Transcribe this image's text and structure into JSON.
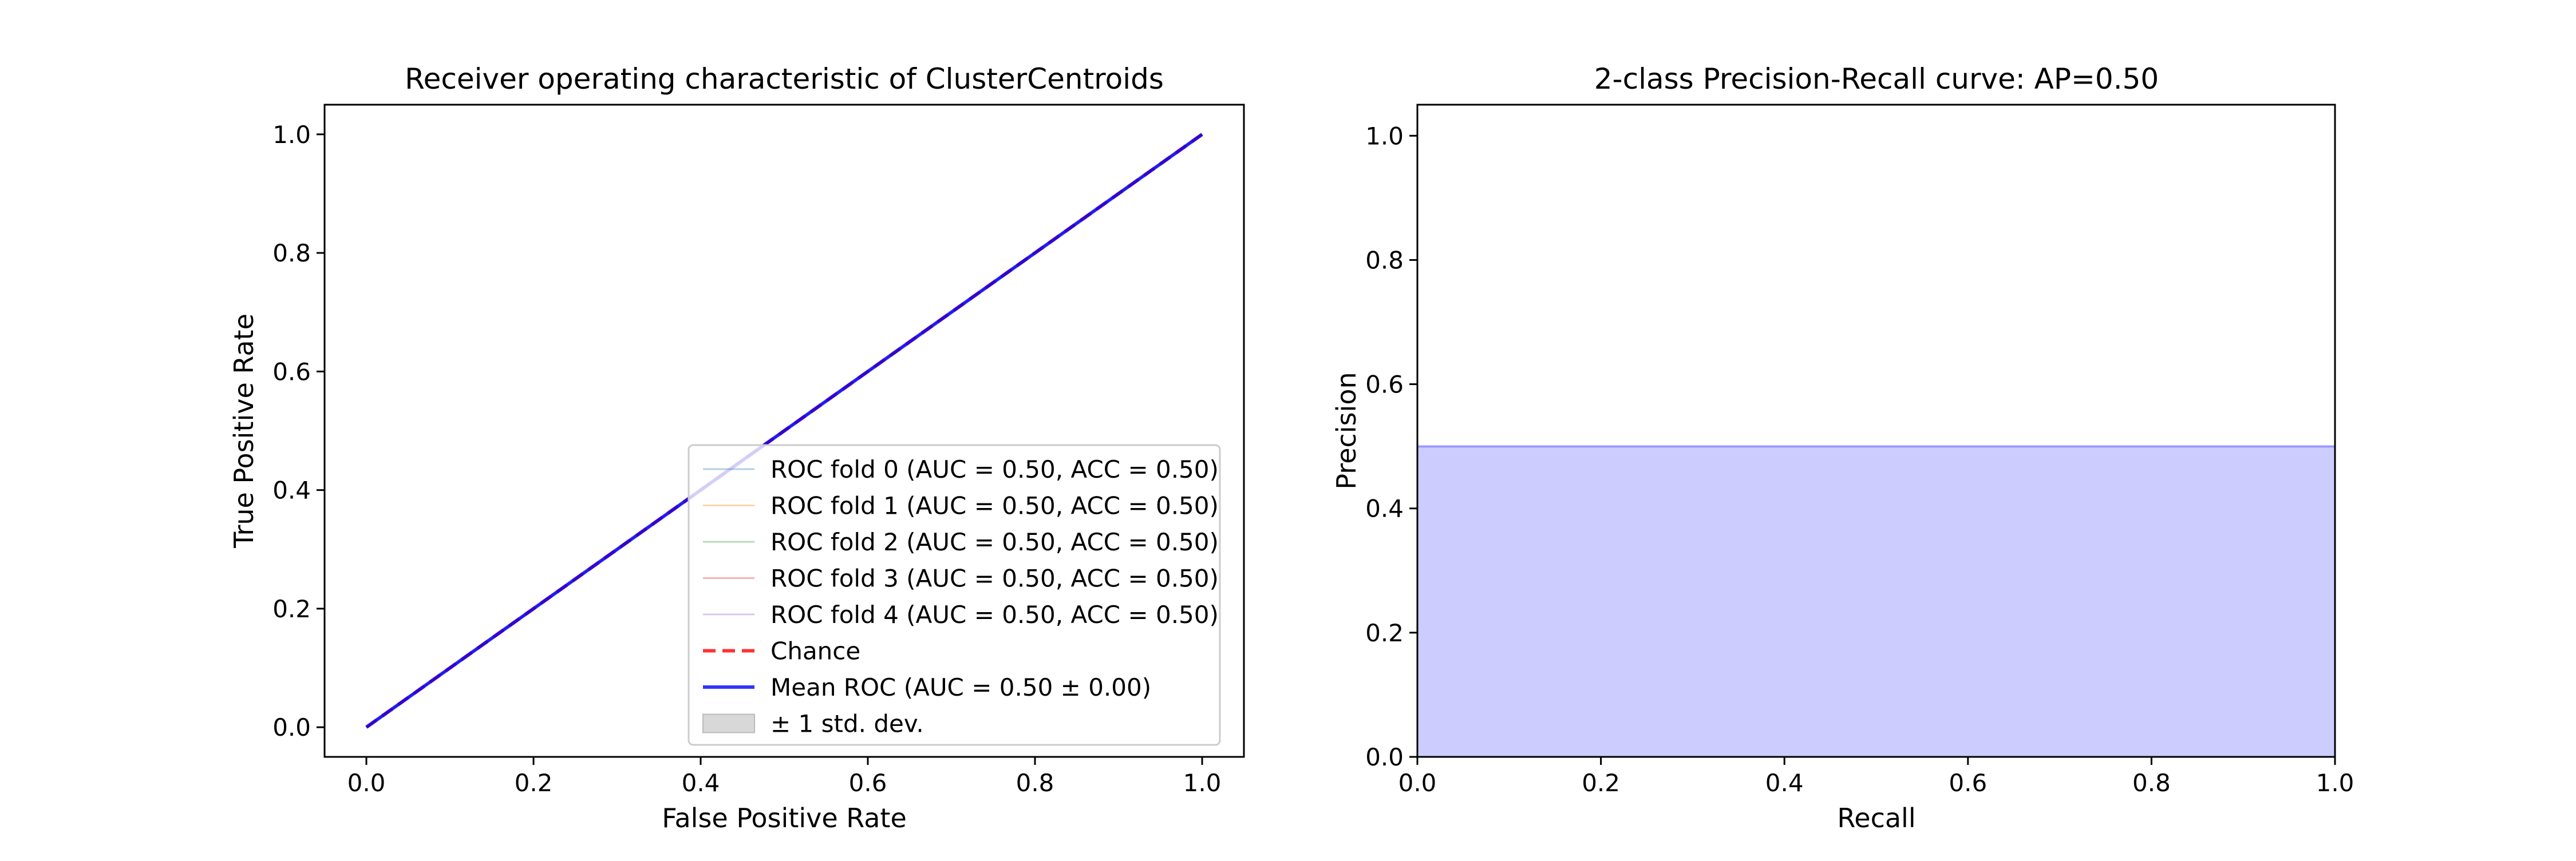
{
  "chart_data": [
    {
      "type": "line",
      "title": "Receiver operating characteristic of ClusterCentroids",
      "xlabel": "False Positive Rate",
      "ylabel": "True Positive Rate",
      "xlim": [
        -0.05,
        1.05
      ],
      "ylim": [
        -0.05,
        1.05
      ],
      "xticks": [
        "0.0",
        "0.2",
        "0.4",
        "0.6",
        "0.8",
        "1.0"
      ],
      "yticks": [
        "0.0",
        "0.2",
        "0.4",
        "0.6",
        "0.8",
        "1.0"
      ],
      "grid": false,
      "legend_position": "lower-right",
      "series": [
        {
          "name": "ROC fold 0 (AUC = 0.50, ACC = 0.50)",
          "x": [
            0,
            1
          ],
          "y": [
            0,
            1
          ],
          "color": "#1f77b4",
          "style": "solid-thin"
        },
        {
          "name": "ROC fold 1 (AUC = 0.50, ACC = 0.50)",
          "x": [
            0,
            1
          ],
          "y": [
            0,
            1
          ],
          "color": "#ff7f0e",
          "style": "solid-thin"
        },
        {
          "name": "ROC fold 2 (AUC = 0.50, ACC = 0.50)",
          "x": [
            0,
            1
          ],
          "y": [
            0,
            1
          ],
          "color": "#2ca02c",
          "style": "solid-thin"
        },
        {
          "name": "ROC fold 3 (AUC = 0.50, ACC = 0.50)",
          "x": [
            0,
            1
          ],
          "y": [
            0,
            1
          ],
          "color": "#d62728",
          "style": "solid-thin"
        },
        {
          "name": "ROC fold 4 (AUC = 0.50, ACC = 0.50)",
          "x": [
            0,
            1
          ],
          "y": [
            0,
            1
          ],
          "color": "#9467bd",
          "style": "solid-thin"
        },
        {
          "name": "Chance",
          "x": [
            0,
            1
          ],
          "y": [
            0,
            1
          ],
          "color": "#ff0000",
          "style": "dashed"
        },
        {
          "name": "Mean ROC (AUC = 0.50 ± 0.00)",
          "x": [
            0,
            1
          ],
          "y": [
            0,
            1
          ],
          "color": "#0000ff",
          "style": "solid-thick"
        },
        {
          "name": "± 1 std. dev.",
          "x": [
            0,
            1
          ],
          "y": [
            0,
            1
          ],
          "color": "#bbbbbb",
          "style": "band"
        }
      ]
    },
    {
      "type": "area",
      "title": "2-class Precision-Recall curve: AP=0.50",
      "xlabel": "Recall",
      "ylabel": "Precision",
      "xlim": [
        0.0,
        1.0
      ],
      "ylim": [
        0.0,
        1.05
      ],
      "xticks": [
        "0.0",
        "0.2",
        "0.4",
        "0.6",
        "0.8",
        "1.0"
      ],
      "yticks": [
        "0.0",
        "0.2",
        "0.4",
        "0.6",
        "0.8",
        "1.0"
      ],
      "grid": false,
      "series": [
        {
          "x": [
            0.0,
            1.0
          ],
          "y": [
            0.5,
            0.5
          ],
          "color": "#0000ff",
          "fill": "#ccccff"
        }
      ]
    }
  ]
}
